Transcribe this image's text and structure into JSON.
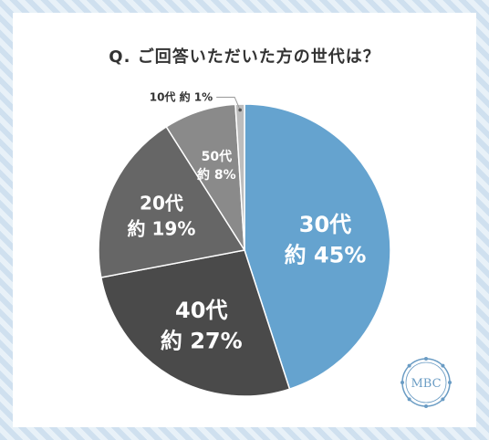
{
  "title": "Q. ご回答いただいた方の世代は？",
  "chart_data": {
    "type": "pie",
    "title": "Q. ご回答いただいた方の世代は？",
    "slices": [
      {
        "label": "30代",
        "value_label": "約 45%",
        "value": 45,
        "color": "#65a3cf"
      },
      {
        "label": "40代",
        "value_label": "約 27%",
        "value": 27,
        "color": "#4a4a4a"
      },
      {
        "label": "20代",
        "value_label": "約 19%",
        "value": 19,
        "color": "#666666"
      },
      {
        "label": "50代",
        "value_label": "約 8%",
        "value": 8,
        "color": "#8a8a8a"
      },
      {
        "label": "10代",
        "value_label": "約 1%",
        "value": 1,
        "color": "#bdbdbd"
      }
    ]
  },
  "logo": {
    "text": "MBC",
    "color": "#6a9cc4"
  }
}
